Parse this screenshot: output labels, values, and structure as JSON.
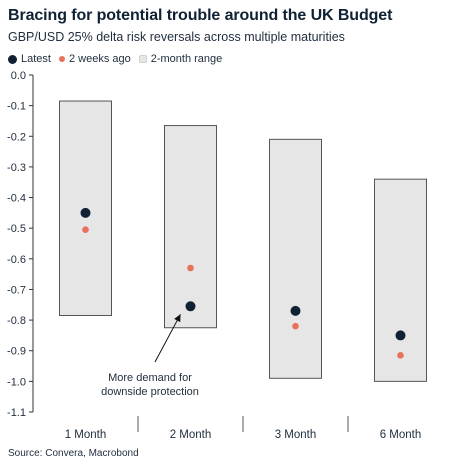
{
  "title": "Bracing for potential trouble around the UK Budget",
  "subtitle": "GBP/USD 25% delta risk reversals across multiple maturities",
  "legend": {
    "latest": "Latest",
    "two_weeks": "2 weeks ago",
    "range": "2-month range"
  },
  "source": "Source: Convera, Macrobond",
  "colors": {
    "latest": "#0f2133",
    "two_weeks": "#e8715c",
    "range_fill": "#e6e6e6",
    "range_stroke": "#555555"
  },
  "chart_data": {
    "type": "range-dot",
    "categories": [
      "1 Month",
      "2 Month",
      "3 Month",
      "6 Month"
    ],
    "series": [
      {
        "name": "Latest",
        "values": [
          -0.45,
          -0.755,
          -0.77,
          -0.85
        ]
      },
      {
        "name": "2 weeks ago",
        "values": [
          -0.505,
          -0.63,
          -0.82,
          -0.915
        ]
      },
      {
        "name": "2-month range",
        "low": [
          -0.785,
          -0.825,
          -0.99,
          -1.0
        ],
        "high": [
          -0.085,
          -0.165,
          -0.21,
          -0.34
        ]
      }
    ],
    "ylim": [
      -1.1,
      0.0
    ],
    "yticks": [
      0.0,
      -0.1,
      -0.2,
      -0.3,
      -0.4,
      -0.5,
      -0.6,
      -0.7,
      -0.8,
      -0.9,
      -1.0,
      -1.1
    ],
    "ytick_labels": [
      "0.0",
      "-0.1",
      "-0.2",
      "-0.3",
      "-0.4",
      "-0.5",
      "-0.6",
      "-0.7",
      "-0.8",
      "-0.9",
      "-1.0",
      "-1.1"
    ],
    "annotation": {
      "lines": [
        "More demand for",
        "downside protection"
      ],
      "category": "2 Month",
      "points_to": -0.755
    },
    "grid": false,
    "legend_position": "top-left"
  }
}
